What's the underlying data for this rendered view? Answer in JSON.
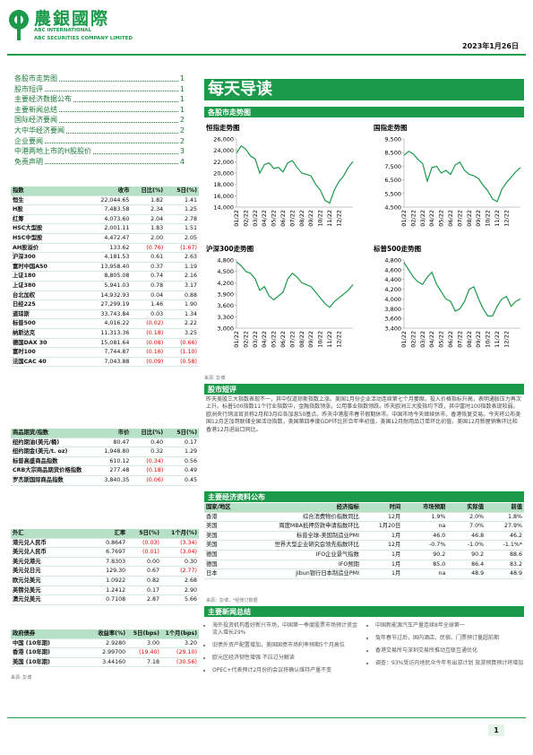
{
  "header": {
    "logo_cn": "農銀國際",
    "logo_en1": "ABC INTERNATIONAL",
    "logo_en2": "ABC SECURITIES COMPANY LIMITED",
    "date": "2023年1月26日"
  },
  "toc": [
    {
      "label": "各股市走势图",
      "page": "1"
    },
    {
      "label": "股市短评",
      "page": "1"
    },
    {
      "label": "主要经济数据公布",
      "page": "1"
    },
    {
      "label": "主要新闻总结",
      "page": "1"
    },
    {
      "label": "国际经济要闻",
      "page": "2"
    },
    {
      "label": "大中华经济要闻",
      "page": "2"
    },
    {
      "label": "企业要闻",
      "page": "2"
    },
    {
      "label": "中港两地上市的H股股价",
      "page": "3"
    },
    {
      "label": "免责声明",
      "page": "4"
    }
  ],
  "title": "每天导读",
  "index_table": {
    "header": [
      "指数",
      "收市",
      "日比(%)",
      "5日(%)"
    ],
    "rows": [
      [
        "恒生",
        "22,044.65",
        "1.82",
        "1.41"
      ],
      [
        "H股",
        "7,483.58",
        "2.34",
        "1.25"
      ],
      [
        "红筹",
        "4,073.60",
        "2.04",
        "2.78"
      ],
      [
        "HSC大型股",
        "2,001.11",
        "1.83",
        "1.51"
      ],
      [
        "HSC中型股",
        "4,472.47",
        "2.00",
        "2.05"
      ],
      [
        "AH股溢价",
        "133.62",
        "(0.76)",
        "(1.67)"
      ],
      [
        "沪深300",
        "4,181.53",
        "0.61",
        "2.63"
      ],
      [
        "富时中国A50",
        "13,958.40",
        "0.37",
        "1.19"
      ],
      [
        "上证180",
        "8,805.08",
        "0.74",
        "2.16"
      ],
      [
        "上证380",
        "5,941.03",
        "0.78",
        "3.17"
      ],
      [
        "台北加权",
        "14,932.93",
        "0.04",
        "0.88"
      ],
      [
        "日经225",
        "27,299.19",
        "1.46",
        "1.90"
      ],
      [
        "道琼斯",
        "33,743.84",
        "0.03",
        "1.34"
      ],
      [
        "标普500",
        "4,016.22",
        "(0.02)",
        "2.22"
      ],
      [
        "纳斯达克",
        "11,313.36",
        "(0.18)",
        "3.25"
      ],
      [
        "德国DAX 30",
        "15,081.64",
        "(0.08)",
        "(0.66)"
      ],
      [
        "富时100",
        "7,744.87",
        "(0.16)",
        "(1.10)"
      ],
      [
        "法国CAC 40",
        "7,043.88",
        "(0.09)",
        "(0.58)"
      ]
    ]
  },
  "commodity_table": {
    "header": [
      "商品期货/指数",
      "市价",
      "日比(%)",
      "5日(%)"
    ],
    "rows": [
      [
        "纽约期油(美元/桶)",
        "80.47",
        "0.40",
        "0.17"
      ],
      [
        "纽约期金(美元/t. oz)",
        "1,948.80",
        "0.32",
        "1.29"
      ],
      [
        "标普高盛商品指数",
        "610.12",
        "(0.34)",
        "0.56"
      ],
      [
        "CRB大宗商品期货价格指数",
        "277.48",
        "(0.18)",
        "0.49"
      ],
      [
        "罗杰斯国际商品指数",
        "3,840.35",
        "(0.06)",
        "0.45"
      ]
    ]
  },
  "fx_table": {
    "header": [
      "外汇",
      "汇率",
      "5日(%)",
      "1个月(%)"
    ],
    "rows": [
      [
        "港元兑人民币",
        "0.8647",
        "(0.03)",
        "(3.34)"
      ],
      [
        "美元兑人民币",
        "6.7697",
        "(0.01)",
        "(3.04)"
      ],
      [
        "美元兑港元",
        "7.8303",
        "0.00",
        "0.30"
      ],
      [
        "美元兑日元",
        "129.30",
        "0.67",
        "(2.77)"
      ],
      [
        "欧元兑美元",
        "1.0922",
        "0.82",
        "2.68"
      ],
      [
        "英镑兑美元",
        "1.2412",
        "0.17",
        "2.90"
      ],
      [
        "澳元兑美元",
        "0.7108",
        "2.87",
        "5.66"
      ]
    ]
  },
  "bond_table": {
    "header": [
      "政府债券",
      "收益率(%)",
      "5日(bps)",
      "1个月(bps)"
    ],
    "rows": [
      [
        "中国 (10年期)",
        "2.9280",
        "3.00",
        "3.20"
      ],
      [
        "香港 (10年期)",
        "2.99700",
        "(19.40)",
        "(29.10)"
      ],
      [
        "美国 (10年期)",
        "3.44160",
        "7.18",
        "(30.56)"
      ]
    ],
    "source": "来源: 彭博"
  },
  "charts_section": {
    "title": "各股市走势图",
    "source": "来源: 彭博"
  },
  "chart_data": [
    {
      "type": "line",
      "title": "恒指走势图",
      "color": "#1a9a4a",
      "ylim": [
        14000,
        26000
      ],
      "yticks": [
        {
          "value": 14000,
          "label": "14,000"
        },
        {
          "value": 16000,
          "label": "16,000"
        },
        {
          "value": 18000,
          "label": "18,000"
        },
        {
          "value": 20000,
          "label": "20,000"
        },
        {
          "value": 22000,
          "label": "22,000"
        },
        {
          "value": 24000,
          "label": "24,000"
        },
        {
          "value": 26000,
          "label": "26,000"
        }
      ],
      "categories": [
        "01/22",
        null,
        "02/22",
        null,
        "03/22",
        null,
        "04/22",
        null,
        "05/22",
        null,
        "06/22",
        null,
        "07/22",
        null,
        "08/22",
        null,
        "09/22",
        null,
        "10/22",
        null,
        "11/22",
        null,
        "12/22",
        null,
        null,
        null
      ],
      "values": [
        23500,
        24800,
        24200,
        23000,
        22500,
        20000,
        21500,
        21800,
        20800,
        21000,
        20200,
        21800,
        22200,
        21000,
        20000,
        19800,
        19500,
        18000,
        17000,
        15200,
        14700,
        17000,
        18500,
        19500,
        21000,
        22000
      ]
    },
    {
      "type": "line",
      "title": "国指走势图",
      "color": "#1a9a4a",
      "ylim": [
        4500,
        9500
      ],
      "yticks": [
        {
          "value": 4500,
          "label": "4,500"
        },
        {
          "value": 5500,
          "label": "5,500"
        },
        {
          "value": 6500,
          "label": "6,500"
        },
        {
          "value": 7500,
          "label": "7,500"
        },
        {
          "value": 8500,
          "label": "8,500"
        },
        {
          "value": 9500,
          "label": "9,500"
        }
      ],
      "categories": [
        "01/22",
        null,
        "02/22",
        null,
        "03/22",
        null,
        "04/22",
        null,
        "05/22",
        null,
        "06/22",
        null,
        "07/22",
        null,
        "08/22",
        null,
        "09/22",
        null,
        "10/22",
        null,
        "11/22",
        null,
        "12/22",
        null,
        null,
        null
      ],
      "values": [
        8300,
        8600,
        8400,
        8000,
        7700,
        6400,
        7400,
        7500,
        7000,
        7200,
        6900,
        7600,
        7800,
        7200,
        6900,
        6800,
        6600,
        6100,
        5700,
        5100,
        4900,
        5800,
        6300,
        6700,
        7100,
        7400
      ]
    },
    {
      "type": "line",
      "title": "沪深300走势图",
      "color": "#1a9a4a",
      "ylim": [
        3000,
        4800
      ],
      "yticks": [
        {
          "value": 3000,
          "label": "3,000"
        },
        {
          "value": 3300,
          "label": "3,300"
        },
        {
          "value": 3600,
          "label": "3,600"
        },
        {
          "value": 3900,
          "label": "3,900"
        },
        {
          "value": 4200,
          "label": "4,200"
        },
        {
          "value": 4500,
          "label": "4,500"
        },
        {
          "value": 4800,
          "label": "4,800"
        }
      ],
      "categories": [
        "01/22",
        null,
        "02/22",
        null,
        "03/22",
        null,
        "04/22",
        null,
        "05/22",
        null,
        "06/22",
        null,
        "07/22",
        null,
        "08/22",
        null,
        "09/22",
        null,
        "10/22",
        null,
        "11/22",
        null,
        "12/22",
        null,
        null,
        null
      ],
      "values": [
        4750,
        4650,
        4500,
        4450,
        4300,
        4000,
        4100,
        3850,
        3750,
        3850,
        3950,
        4300,
        4450,
        4350,
        4200,
        4150,
        4100,
        3950,
        3800,
        3650,
        3550,
        3700,
        3800,
        3900,
        4000,
        4150
      ]
    },
    {
      "type": "line",
      "title": "标普500走势图",
      "color": "#1a9a4a",
      "ylim": [
        3400,
        4800
      ],
      "yticks": [
        {
          "value": 3400,
          "label": "3,400"
        },
        {
          "value": 3600,
          "label": "3,600"
        },
        {
          "value": 3800,
          "label": "3,800"
        },
        {
          "value": 4000,
          "label": "4,000"
        },
        {
          "value": 4200,
          "label": "4,200"
        },
        {
          "value": 4400,
          "label": "4,400"
        },
        {
          "value": 4600,
          "label": "4,600"
        },
        {
          "value": 4800,
          "label": "4,800"
        }
      ],
      "categories": [
        "01/22",
        null,
        "02/22",
        null,
        "03/22",
        null,
        "04/22",
        null,
        "05/22",
        null,
        "06/22",
        null,
        "07/22",
        null,
        "08/22",
        null,
        "09/22",
        null,
        "10/22",
        null,
        "11/22",
        null,
        "12/22",
        null,
        null,
        null
      ],
      "values": [
        4750,
        4600,
        4450,
        4350,
        4300,
        4450,
        4550,
        4300,
        4150,
        4000,
        3950,
        3750,
        3800,
        3950,
        4200,
        4250,
        4000,
        3800,
        3650,
        3650,
        3850,
        4000,
        4050,
        3850,
        3950,
        4000
      ]
    }
  ],
  "commentary": {
    "title": "股市短评",
    "text": "昨天美股三大指数表现不一，其中仅道琼斯指数上涨。美国1月份企业活动连续第七个月萎缩，投入价格指标升高，表明通胀压力再次上升。标普500指数11个行业指数中，金融指数领涨，公用事业指数领跌。昨天欧洲三大股指均下跌，其中富时100指数表现较弱。欧洲央行鸽派官员称2月和3月应各加息50基点。昨天中港股市春节假期休市。中国市场今天继续休市，香港恢复交易。今天将公布美国12月芝加哥联储全国活动指数，美国第四季度GDP环比折合年率初值，美国12月耐用品订单环比初值，美国12月新屋销售环比和香港12月进出口同比。"
  },
  "econ": {
    "title": "主要经济资料公布",
    "header": [
      "国家/地区",
      "经济指标",
      "时间",
      "市场预期",
      "实际值",
      "前值"
    ],
    "rows": [
      [
        "香港",
        "综合消费物价指数同比",
        "12月",
        "1.9%",
        "2.0%",
        "1.8%"
      ],
      [
        "美国",
        "周度MBA抵押贷款申请指数环比",
        "1月20日",
        "na",
        "7.0%",
        "27.9%"
      ],
      [
        "美国",
        "标普全球-美国制造业PMI",
        "1月",
        "46.0",
        "46.8",
        "46.2"
      ],
      [
        "美国",
        "世界大型企业研究会领先指数环比",
        "12月",
        "-0.7%",
        "-1.0%",
        "-1.1%*"
      ],
      [
        "德国",
        "IFO企业景气指数",
        "1月",
        "90.2",
        "90.2",
        "88.6"
      ],
      [
        "德国",
        "IFO预期",
        "1月",
        "85.0",
        "86.4",
        "83.2"
      ],
      [
        "日本",
        "Jibun银行日本制造业PMI",
        "1月",
        "na",
        "48.9",
        "48.9"
      ]
    ],
    "source": "来源：彭博，*经修订数据"
  },
  "news": {
    "title": "主要新闻总结",
    "left": [
      "海外投资机构看好新兴市场，中国第一季度股票市场预计资金流入增长29%",
      "旧债外资产配置增加，美国国债市场利率预期5个月高位",
      "欧元区经济韧性增强 不应过分解读",
      "OPEC+代表预计2月份的会议将确认维持产量不变"
    ],
    "right": [
      "中国新能源汽车产量连续8年全球第一",
      "兔年春节过后，国内酒店、民宿、门票预订量超前期",
      "香港交易所与深圳交易所推动互联互通优化",
      "调查：93%受访内地民众今年有出游计划 旅游预算预计将增加"
    ]
  },
  "footer": {
    "page": "1"
  }
}
